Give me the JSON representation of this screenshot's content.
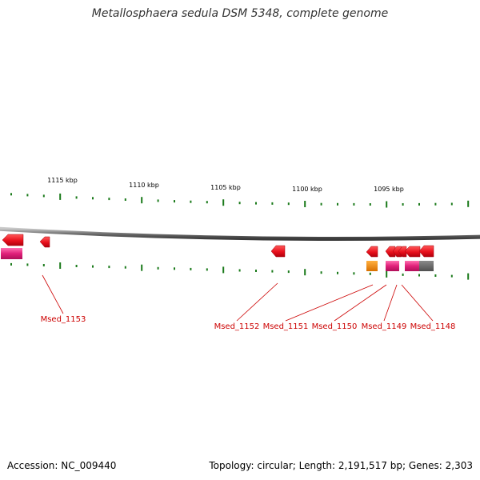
{
  "title": "Metallosphaera sedula DSM 5348, complete genome",
  "footer": {
    "accession": "Accession: NC_009440",
    "summary": "Topology: circular; Length: 2,191,517 bp; Genes: 2,303"
  },
  "scale_labels": [
    "1115 kbp",
    "1110 kbp",
    "1105 kbp",
    "1100 kbp",
    "1095 kbp"
  ],
  "gene_labels": [
    "Msed_1153",
    "Msed_1152",
    "Msed_1151",
    "Msed_1150",
    "Msed_1149",
    "Msed_1148"
  ],
  "colors": {
    "backbone": "#7a7a7a",
    "tick": "#1a7a1a",
    "gene_red": "#e8101c",
    "gene_magenta": "#e0207a",
    "gene_orange": "#ee8a00",
    "gene_gray": "#6b6b6b",
    "label_red": "#cc0000"
  }
}
